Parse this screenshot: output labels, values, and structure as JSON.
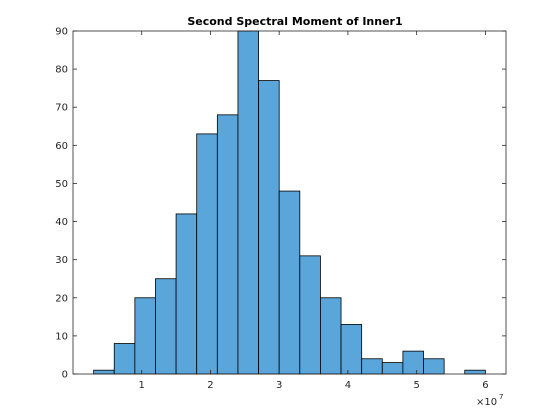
{
  "chart_data": {
    "type": "bar",
    "title": "Second Spectral Moment of Inner1",
    "xlabel": "",
    "ylabel": "",
    "x_scale_exponent_label": {
      "base": "×10",
      "exponent": "7"
    },
    "bin_width": 0.3,
    "bins": [
      {
        "start": 0.3,
        "end": 0.6,
        "count": 1
      },
      {
        "start": 0.6,
        "end": 0.9,
        "count": 8
      },
      {
        "start": 0.9,
        "end": 1.2,
        "count": 20
      },
      {
        "start": 1.2,
        "end": 1.5,
        "count": 25
      },
      {
        "start": 1.5,
        "end": 1.8,
        "count": 42
      },
      {
        "start": 1.8,
        "end": 2.1,
        "count": 63
      },
      {
        "start": 2.1,
        "end": 2.4,
        "count": 68
      },
      {
        "start": 2.4,
        "end": 2.7,
        "count": 90
      },
      {
        "start": 2.7,
        "end": 3.0,
        "count": 77
      },
      {
        "start": 3.0,
        "end": 3.3,
        "count": 48
      },
      {
        "start": 3.3,
        "end": 3.6,
        "count": 31
      },
      {
        "start": 3.6,
        "end": 3.9,
        "count": 20
      },
      {
        "start": 3.9,
        "end": 4.2,
        "count": 13
      },
      {
        "start": 4.2,
        "end": 4.5,
        "count": 4
      },
      {
        "start": 4.5,
        "end": 4.8,
        "count": 3
      },
      {
        "start": 4.8,
        "end": 5.1,
        "count": 6
      },
      {
        "start": 5.1,
        "end": 5.4,
        "count": 4
      },
      {
        "start": 5.4,
        "end": 5.7,
        "count": 0
      },
      {
        "start": 5.7,
        "end": 6.0,
        "count": 1
      }
    ],
    "xlim": [
      0,
      6.3
    ],
    "ylim": [
      0,
      90
    ],
    "xticks": [
      1,
      2,
      3,
      4,
      5,
      6
    ],
    "yticks": [
      0,
      10,
      20,
      30,
      40,
      50,
      60,
      70,
      80,
      90
    ],
    "grid": false,
    "bar_color": "#5aa5d9",
    "bar_edge_color": "#000000"
  }
}
